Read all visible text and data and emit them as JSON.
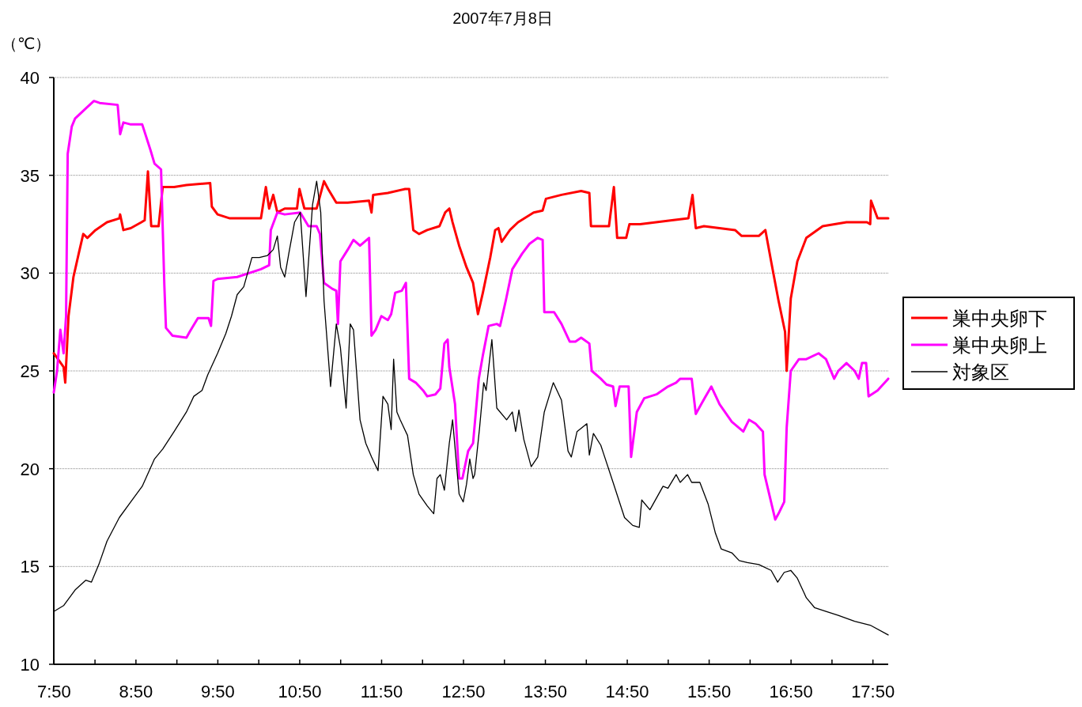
{
  "chart_data": {
    "type": "line",
    "title": "2007年7月8日",
    "ylabel": "（℃）",
    "xlim": [
      7.83,
      18.02
    ],
    "ylim": [
      10,
      40
    ],
    "xticks": [
      {
        "value": 7.8333,
        "label": "7:50"
      },
      {
        "value": 8.3333,
        "label": null
      },
      {
        "value": 8.8333,
        "label": "8:50"
      },
      {
        "value": 9.3333,
        "label": null
      },
      {
        "value": 9.8333,
        "label": "9:50"
      },
      {
        "value": 10.3333,
        "label": null
      },
      {
        "value": 10.8333,
        "label": "10:50"
      },
      {
        "value": 11.3333,
        "label": null
      },
      {
        "value": 11.8333,
        "label": "11:50"
      },
      {
        "value": 12.3333,
        "label": null
      },
      {
        "value": 12.8333,
        "label": "12:50"
      },
      {
        "value": 13.3333,
        "label": null
      },
      {
        "value": 13.8333,
        "label": "13:50"
      },
      {
        "value": 14.3333,
        "label": null
      },
      {
        "value": 14.8333,
        "label": "14:50"
      },
      {
        "value": 15.3333,
        "label": null
      },
      {
        "value": 15.8333,
        "label": "15:50"
      },
      {
        "value": 16.3333,
        "label": null
      },
      {
        "value": 16.8333,
        "label": "16:50"
      },
      {
        "value": 17.3333,
        "label": null
      },
      {
        "value": 17.8333,
        "label": "17:50"
      }
    ],
    "yticks": [
      10,
      15,
      20,
      25,
      30,
      35,
      40
    ],
    "grid": "y",
    "legend": "right",
    "series": [
      {
        "name": "巣中央卵下",
        "color": "#ff0000",
        "x": [
          7.83,
          7.95,
          7.97,
          8.01,
          8.07,
          8.14,
          8.19,
          8.24,
          8.34,
          8.48,
          8.63,
          8.64,
          8.68,
          8.77,
          8.9,
          8.94,
          8.98,
          9.02,
          9.11,
          9.16,
          9.3,
          9.45,
          9.74,
          9.76,
          9.83,
          9.98,
          10.07,
          10.36,
          10.42,
          10.46,
          10.51,
          10.56,
          10.65,
          10.8,
          10.83,
          10.89,
          11.04,
          11.13,
          11.18,
          11.28,
          11.42,
          11.68,
          11.71,
          11.73,
          11.91,
          12.12,
          12.17,
          12.22,
          12.29,
          12.39,
          12.54,
          12.61,
          12.66,
          12.7,
          12.78,
          12.87,
          12.95,
          13.01,
          13.07,
          13.16,
          13.22,
          13.26,
          13.3,
          13.4,
          13.5,
          13.69,
          13.8,
          13.84,
          14.03,
          14.27,
          14.37,
          14.39,
          14.61,
          14.67,
          14.71,
          14.82,
          14.86,
          14.99,
          15.38,
          15.58,
          15.63,
          15.67,
          15.77,
          16.15,
          16.23,
          16.44,
          16.52,
          16.59,
          16.68,
          16.76,
          16.78,
          16.83,
          16.91,
          17.02,
          17.22,
          17.51,
          17.76,
          17.8,
          17.81,
          17.89,
          18.02
        ],
        "values": [
          25.9,
          25.2,
          24.4,
          27.8,
          29.8,
          31.1,
          32.0,
          31.8,
          32.2,
          32.6,
          32.8,
          33.0,
          32.2,
          32.3,
          32.6,
          32.7,
          35.2,
          32.4,
          32.4,
          34.4,
          34.4,
          34.5,
          34.6,
          33.4,
          33.0,
          32.8,
          32.8,
          32.8,
          34.4,
          33.3,
          34.0,
          33.1,
          33.3,
          33.3,
          34.3,
          33.3,
          33.3,
          34.7,
          34.3,
          33.6,
          33.6,
          33.7,
          33.1,
          34.0,
          34.1,
          34.3,
          34.3,
          32.2,
          32.0,
          32.2,
          32.4,
          33.1,
          33.3,
          32.6,
          31.4,
          30.3,
          29.5,
          27.9,
          29.0,
          30.8,
          32.2,
          32.3,
          31.6,
          32.2,
          32.6,
          33.1,
          33.2,
          33.8,
          34.0,
          34.2,
          34.1,
          32.4,
          32.4,
          34.4,
          31.8,
          31.8,
          32.5,
          32.5,
          32.7,
          32.8,
          34.0,
          32.3,
          32.4,
          32.2,
          31.9,
          31.9,
          32.2,
          30.6,
          28.6,
          27.0,
          25.0,
          28.7,
          30.6,
          31.8,
          32.4,
          32.6,
          32.6,
          32.5,
          33.7,
          32.8,
          32.8
        ]
      },
      {
        "name": "巣中央卵上",
        "color": "#ff00ff",
        "x": [
          7.83,
          7.87,
          7.91,
          7.95,
          7.98,
          8.0,
          8.05,
          8.09,
          8.19,
          8.32,
          8.39,
          8.61,
          8.64,
          8.68,
          8.77,
          8.91,
          9.01,
          9.06,
          9.14,
          9.18,
          9.2,
          9.28,
          9.45,
          9.49,
          9.59,
          9.72,
          9.75,
          9.78,
          9.83,
          10.07,
          10.36,
          10.46,
          10.48,
          10.56,
          10.65,
          10.84,
          10.94,
          11.04,
          11.08,
          11.13,
          11.23,
          11.28,
          11.3,
          11.33,
          11.42,
          11.49,
          11.57,
          11.68,
          11.71,
          11.76,
          11.83,
          11.91,
          11.95,
          12.0,
          12.08,
          12.13,
          12.17,
          12.25,
          12.34,
          12.39,
          12.49,
          12.55,
          12.6,
          12.64,
          12.66,
          12.73,
          12.78,
          12.82,
          12.89,
          12.95,
          13.02,
          13.07,
          13.14,
          13.24,
          13.28,
          13.35,
          13.43,
          13.55,
          13.64,
          13.74,
          13.8,
          13.82,
          13.94,
          14.03,
          14.13,
          14.2,
          14.27,
          14.37,
          14.4,
          14.51,
          14.58,
          14.66,
          14.69,
          14.74,
          14.85,
          14.88,
          14.95,
          15.04,
          15.19,
          15.33,
          15.43,
          15.48,
          15.62,
          15.67,
          15.79,
          15.86,
          15.96,
          16.11,
          16.25,
          16.32,
          16.4,
          16.49,
          16.51,
          16.64,
          16.68,
          16.75,
          16.78,
          16.83,
          16.93,
          17.02,
          17.17,
          17.26,
          17.36,
          17.41,
          17.51,
          17.61,
          17.66,
          17.7,
          17.75,
          17.78,
          17.89,
          18.02
        ],
        "values": [
          23.9,
          25.0,
          27.1,
          25.9,
          27.8,
          36.1,
          37.5,
          37.9,
          38.3,
          38.8,
          38.7,
          38.6,
          37.1,
          37.7,
          37.6,
          37.6,
          36.3,
          35.6,
          35.3,
          29.4,
          27.2,
          26.8,
          26.7,
          27.0,
          27.7,
          27.7,
          27.3,
          29.6,
          29.7,
          29.8,
          30.2,
          30.4,
          32.2,
          33.1,
          33.0,
          33.1,
          32.4,
          32.4,
          32.0,
          29.5,
          29.2,
          29.1,
          27.4,
          30.6,
          31.2,
          31.7,
          31.4,
          31.8,
          26.8,
          27.1,
          27.8,
          27.6,
          27.9,
          29.0,
          29.1,
          29.5,
          24.6,
          24.4,
          24.0,
          23.7,
          23.8,
          24.1,
          26.4,
          26.6,
          25.2,
          23.3,
          19.5,
          19.5,
          20.9,
          21.3,
          24.6,
          25.8,
          27.3,
          27.4,
          27.3,
          28.6,
          30.2,
          31.0,
          31.5,
          31.8,
          31.7,
          28.0,
          28.0,
          27.4,
          26.5,
          26.5,
          26.7,
          26.4,
          25.0,
          24.6,
          24.3,
          24.2,
          23.2,
          24.2,
          24.2,
          20.6,
          22.9,
          23.6,
          23.8,
          24.2,
          24.4,
          24.6,
          24.6,
          22.8,
          23.7,
          24.2,
          23.3,
          22.4,
          21.9,
          22.5,
          22.3,
          21.9,
          19.7,
          17.4,
          17.7,
          18.3,
          22.1,
          25.0,
          25.6,
          25.6,
          25.9,
          25.6,
          24.6,
          25.0,
          25.4,
          25.0,
          24.6,
          25.4,
          25.4,
          23.7,
          24.0,
          24.6
        ]
      },
      {
        "name": "対象区",
        "color": "#000000",
        "x": [
          7.83,
          7.95,
          8.09,
          8.22,
          8.29,
          8.38,
          8.48,
          8.63,
          8.77,
          8.91,
          9.06,
          9.16,
          9.3,
          9.45,
          9.54,
          9.64,
          9.71,
          9.83,
          9.93,
          10.0,
          10.07,
          10.15,
          10.25,
          10.34,
          10.44,
          10.51,
          10.56,
          10.6,
          10.65,
          10.7,
          10.77,
          10.84,
          10.91,
          10.99,
          11.04,
          11.09,
          11.13,
          11.21,
          11.28,
          11.33,
          11.4,
          11.45,
          11.49,
          11.57,
          11.64,
          11.71,
          11.79,
          11.85,
          11.91,
          11.95,
          11.98,
          12.02,
          12.06,
          12.15,
          12.22,
          12.29,
          12.39,
          12.47,
          12.51,
          12.55,
          12.6,
          12.66,
          12.7,
          12.78,
          12.83,
          12.87,
          12.91,
          12.95,
          12.97,
          13.03,
          13.08,
          13.11,
          13.18,
          13.24,
          13.36,
          13.43,
          13.47,
          13.51,
          13.57,
          13.66,
          13.74,
          13.82,
          13.93,
          14.03,
          14.11,
          14.15,
          14.22,
          14.34,
          14.37,
          14.42,
          14.51,
          14.66,
          14.8,
          14.9,
          14.98,
          15.01,
          15.11,
          15.27,
          15.33,
          15.43,
          15.48,
          15.57,
          15.62,
          15.72,
          15.82,
          15.91,
          15.98,
          16.11,
          16.2,
          16.3,
          16.44,
          16.59,
          16.67,
          16.75,
          16.83,
          16.91,
          17.02,
          17.12,
          17.26,
          17.41,
          17.61,
          17.8,
          18.02
        ],
        "values": [
          12.7,
          13.0,
          13.8,
          14.3,
          14.2,
          15.1,
          16.3,
          17.5,
          18.3,
          19.1,
          20.5,
          21.0,
          21.9,
          22.9,
          23.7,
          24.0,
          24.8,
          25.9,
          26.9,
          27.8,
          28.9,
          29.3,
          30.8,
          30.8,
          30.9,
          31.2,
          31.9,
          30.3,
          29.8,
          31.0,
          32.6,
          33.1,
          28.8,
          33.5,
          34.7,
          33.1,
          28.6,
          24.2,
          27.4,
          26.2,
          23.1,
          27.4,
          27.1,
          22.5,
          21.3,
          20.6,
          19.9,
          23.7,
          23.3,
          22.0,
          25.6,
          22.9,
          22.5,
          21.7,
          19.7,
          18.7,
          18.1,
          17.7,
          19.5,
          19.7,
          18.9,
          21.3,
          22.5,
          18.7,
          18.3,
          19.2,
          20.5,
          19.5,
          19.7,
          22.1,
          24.4,
          24.0,
          26.6,
          23.1,
          22.5,
          22.9,
          21.9,
          23.0,
          21.5,
          20.1,
          20.6,
          22.9,
          24.4,
          23.5,
          20.9,
          20.6,
          21.9,
          22.3,
          20.7,
          21.8,
          21.2,
          19.3,
          17.5,
          17.1,
          17.0,
          18.4,
          17.9,
          19.1,
          19.0,
          19.7,
          19.3,
          19.7,
          19.3,
          19.3,
          18.2,
          16.7,
          15.9,
          15.7,
          15.3,
          15.2,
          15.1,
          14.8,
          14.2,
          14.7,
          14.8,
          14.4,
          13.4,
          12.9,
          12.7,
          12.5,
          12.2,
          12.0,
          11.5
        ]
      }
    ]
  }
}
